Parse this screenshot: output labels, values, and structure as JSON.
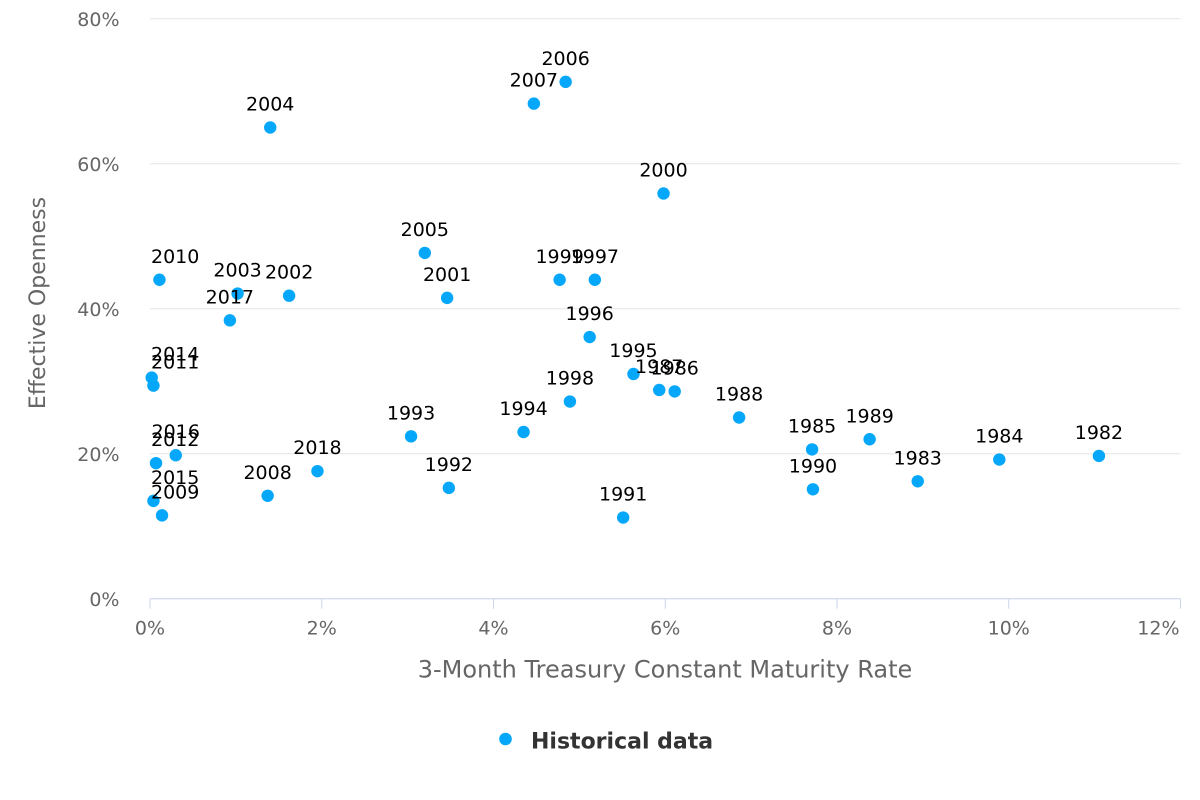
{
  "chart_data": {
    "type": "scatter",
    "xlabel": "3-Month Treasury Constant Maturity Rate",
    "ylabel": "Effective Openness",
    "xlim": [
      0,
      12
    ],
    "ylim": [
      0,
      80
    ],
    "x_ticks": [
      {
        "value": 0,
        "label": "0%"
      },
      {
        "value": 2,
        "label": "2%"
      },
      {
        "value": 4,
        "label": "4%"
      },
      {
        "value": 6,
        "label": "6%"
      },
      {
        "value": 8,
        "label": "8%"
      },
      {
        "value": 10,
        "label": "10%"
      },
      {
        "value": 12,
        "label": "12%"
      }
    ],
    "y_ticks": [
      {
        "value": 0,
        "label": "0%"
      },
      {
        "value": 20,
        "label": "20%"
      },
      {
        "value": 40,
        "label": "40%"
      },
      {
        "value": 60,
        "label": "60%"
      },
      {
        "value": 80,
        "label": "80%"
      }
    ],
    "grid": "horizontal-only",
    "legend_position": "bottom-center",
    "series": [
      {
        "name": "Historical data",
        "marker": "circle",
        "points": [
          {
            "label": "1982",
            "x": 11.05,
            "y": 19.7
          },
          {
            "label": "1983",
            "x": 8.94,
            "y": 16.2
          },
          {
            "label": "1984",
            "x": 9.89,
            "y": 19.2
          },
          {
            "label": "1985",
            "x": 7.71,
            "y": 20.6
          },
          {
            "label": "1986",
            "x": 6.11,
            "y": 28.6
          },
          {
            "label": "1987",
            "x": 5.93,
            "y": 28.8
          },
          {
            "label": "1988",
            "x": 6.86,
            "y": 25.0
          },
          {
            "label": "1989",
            "x": 8.38,
            "y": 22.0
          },
          {
            "label": "1990",
            "x": 7.72,
            "y": 15.1
          },
          {
            "label": "1991",
            "x": 5.51,
            "y": 11.2
          },
          {
            "label": "1992",
            "x": 3.48,
            "y": 15.3
          },
          {
            "label": "1993",
            "x": 3.04,
            "y": 22.4
          },
          {
            "label": "1994",
            "x": 4.35,
            "y": 23.0
          },
          {
            "label": "1995",
            "x": 5.63,
            "y": 31.0
          },
          {
            "label": "1996",
            "x": 5.12,
            "y": 36.1
          },
          {
            "label": "1997",
            "x": 5.18,
            "y": 44.0
          },
          {
            "label": "1998",
            "x": 4.89,
            "y": 27.2
          },
          {
            "label": "1999",
            "x": 4.77,
            "y": 44.0
          },
          {
            "label": "2000",
            "x": 5.98,
            "y": 55.9
          },
          {
            "label": "2001",
            "x": 3.46,
            "y": 41.5
          },
          {
            "label": "2002",
            "x": 1.62,
            "y": 41.8
          },
          {
            "label": "2003",
            "x": 1.02,
            "y": 42.1
          },
          {
            "label": "2004",
            "x": 1.4,
            "y": 65.0
          },
          {
            "label": "2005",
            "x": 3.2,
            "y": 47.7
          },
          {
            "label": "2006",
            "x": 4.84,
            "y": 71.3
          },
          {
            "label": "2007",
            "x": 4.47,
            "y": 68.3
          },
          {
            "label": "2008",
            "x": 1.37,
            "y": 14.2
          },
          {
            "label": "2009",
            "x": 0.14,
            "y": 11.5
          },
          {
            "label": "2010",
            "x": 0.11,
            "y": 44.0
          },
          {
            "label": "2011",
            "x": 0.04,
            "y": 29.4
          },
          {
            "label": "2012",
            "x": 0.07,
            "y": 18.7
          },
          {
            "label": "2014",
            "x": 0.02,
            "y": 30.5
          },
          {
            "label": "2015",
            "x": 0.04,
            "y": 13.5
          },
          {
            "label": "2016",
            "x": 0.3,
            "y": 19.8
          },
          {
            "label": "2017",
            "x": 0.93,
            "y": 38.4
          },
          {
            "label": "2018",
            "x": 1.95,
            "y": 17.6
          }
        ]
      }
    ],
    "legend": {
      "items": [
        {
          "label": "Historical data",
          "marker": "circle-icon"
        }
      ]
    }
  },
  "colors": {
    "background": "#ffffff",
    "point": "#04a7fa",
    "gridline": "#e6e6e6",
    "axis_line": "#ccd6eb",
    "tick_label": "#666666",
    "axis_title": "#666666",
    "point_label": "#000000",
    "legend_text": "#333333"
  }
}
